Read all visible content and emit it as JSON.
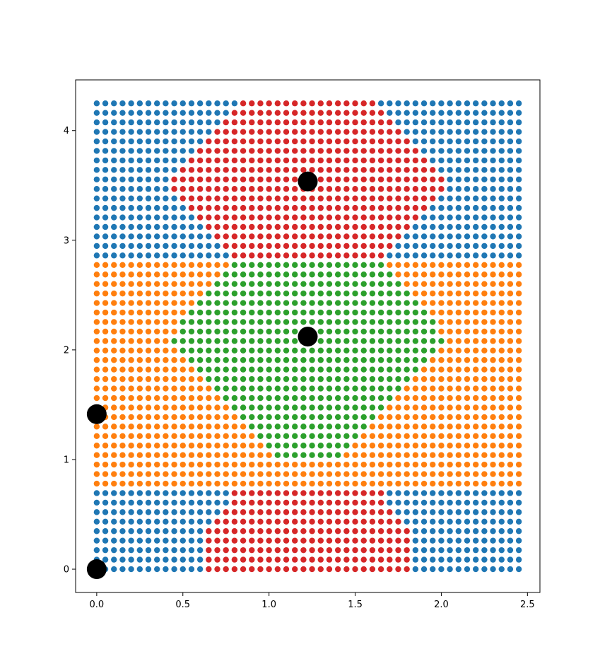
{
  "chart_data": {
    "type": "scatter",
    "title": "",
    "xlabel": "",
    "ylabel": "",
    "xlim": [
      -0.1225,
      2.5725
    ],
    "ylim": [
      -0.2125,
      4.4625
    ],
    "grid": false,
    "legend": "none",
    "xticks": [
      {
        "value": 0.0,
        "label": "0.0"
      },
      {
        "value": 0.5,
        "label": "0.5"
      },
      {
        "value": 1.0,
        "label": "1.0"
      },
      {
        "value": 1.5,
        "label": "1.5"
      },
      {
        "value": 2.0,
        "label": "2.0"
      },
      {
        "value": 2.5,
        "label": "2.5"
      }
    ],
    "yticks": [
      {
        "value": 0,
        "label": "0"
      },
      {
        "value": 1,
        "label": "1"
      },
      {
        "value": 2,
        "label": "2"
      },
      {
        "value": 3,
        "label": "3"
      },
      {
        "value": 4,
        "label": "4"
      }
    ],
    "grid_points": {
      "x_start": 0.0,
      "x_step": 0.05,
      "x_count": 50,
      "y_start": 0.0,
      "y_step": 0.0867,
      "y_count": 50
    },
    "centers": [
      {
        "x": 0.0,
        "y": 0.0
      },
      {
        "x": 0.0,
        "y": 1.414
      },
      {
        "x": 1.225,
        "y": 2.121
      },
      {
        "x": 1.225,
        "y": 3.536
      }
    ],
    "regions": [
      {
        "color": "#1f77b4",
        "label": "blue"
      },
      {
        "color": "#ff7f0e",
        "label": "orange"
      },
      {
        "color": "#2ca02c",
        "label": "green"
      },
      {
        "color": "#d62728",
        "label": "red"
      }
    ],
    "center_color": "#000000"
  }
}
